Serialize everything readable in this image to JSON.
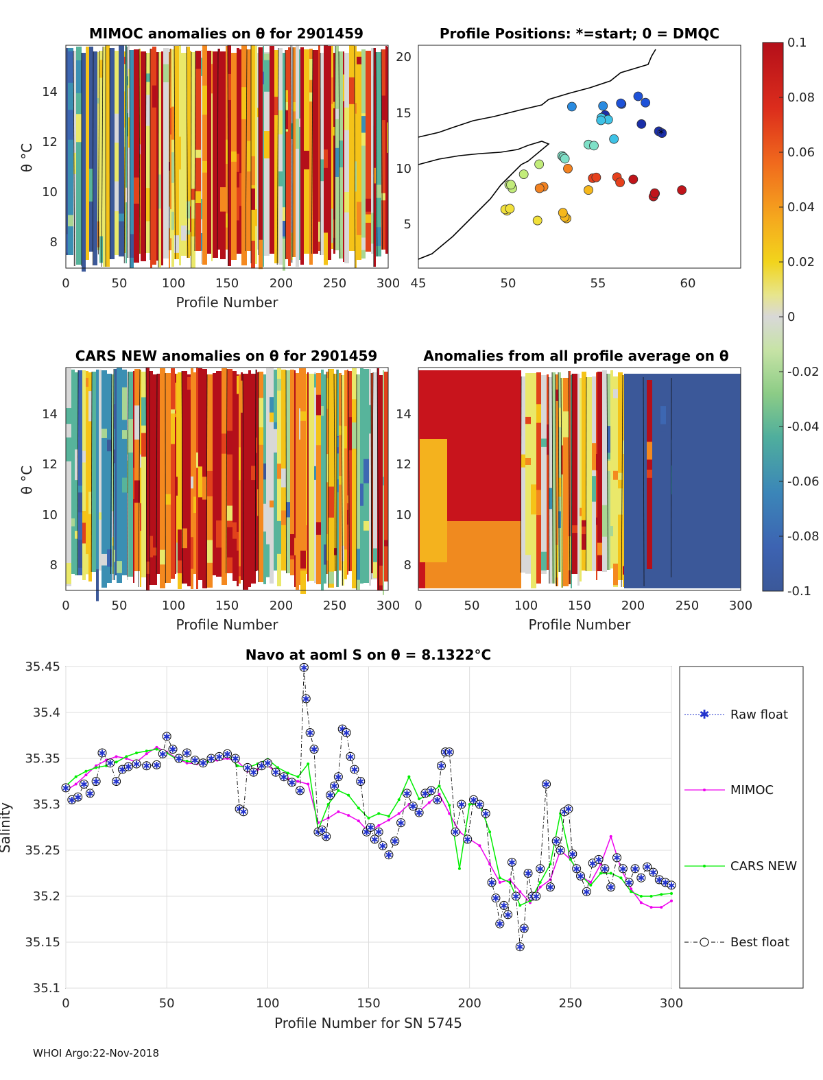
{
  "panels": {
    "mimoc": {
      "title": "MIMOC anomalies on θ  for 2901459",
      "ylabel": "θ °C",
      "xlabel": "Profile Number",
      "xticks": [
        "0",
        "50",
        "100",
        "150",
        "200",
        "250",
        "300"
      ],
      "yticks": [
        "8",
        "10",
        "12",
        "14"
      ]
    },
    "positions": {
      "title": "Profile Positions: *=start; 0 = DMQC",
      "xticks": [
        "45",
        "50",
        "55",
        "60"
      ],
      "yticks": [
        "5",
        "10",
        "15",
        "20"
      ]
    },
    "cars": {
      "title": "CARS NEW anomalies on θ for 2901459",
      "ylabel": "θ °C",
      "xlabel": "Profile Number",
      "xticks": [
        "0",
        "50",
        "100",
        "150",
        "200",
        "250",
        "300"
      ],
      "yticks": [
        "8",
        "10",
        "12",
        "14"
      ]
    },
    "allavg": {
      "title": "Anomalies from all profile average on θ",
      "xlabel": "Profile Number",
      "xticks": [
        "0",
        "50",
        "100",
        "150",
        "200",
        "250",
        "300"
      ],
      "yticks": [
        "8",
        "10",
        "12",
        "14"
      ]
    }
  },
  "colorbar": {
    "ticks": [
      "0.1",
      "0.08",
      "0.06",
      "0.04",
      "0.02",
      "0",
      "-0.02",
      "-0.04",
      "-0.06",
      "-0.08",
      "-0.1"
    ],
    "colors": [
      "#b40f1a",
      "#e1421b",
      "#f4891f",
      "#f5c318",
      "#eae86a",
      "#d8d8d8",
      "#a9d693",
      "#57b49b",
      "#3b8fb3",
      "#3d67b2",
      "#3b5899"
    ]
  },
  "chart_data": [
    {
      "type": "line",
      "title": "Navo at aoml S on θ = 8.1322°C",
      "xlabel": "Profile Number for SN 5745",
      "ylabel": "Salinity",
      "xlim": [
        0,
        300
      ],
      "ylim": [
        35.1,
        35.45
      ],
      "xticks": [
        "0",
        "50",
        "100",
        "150",
        "200",
        "250",
        "300"
      ],
      "yticks": [
        "35.1",
        "35.15",
        "35.2",
        "35.25",
        "35.3",
        "35.35",
        "35.4",
        "35.45"
      ],
      "legend_position": "right",
      "series": [
        {
          "name": "Raw float",
          "color": "#2233cc",
          "x": [],
          "y": []
        },
        {
          "name": "MIMOC",
          "color": "#ee00ee",
          "x": [
            0,
            5,
            10,
            15,
            20,
            25,
            30,
            35,
            40,
            45,
            50,
            55,
            60,
            65,
            70,
            75,
            80,
            85,
            90,
            95,
            100,
            105,
            110,
            115,
            120,
            125,
            130,
            135,
            140,
            145,
            150,
            155,
            160,
            165,
            170,
            175,
            180,
            185,
            190,
            195,
            200,
            205,
            210,
            215,
            220,
            225,
            230,
            235,
            240,
            245,
            250,
            255,
            260,
            265,
            270,
            275,
            280,
            285,
            290,
            295,
            300
          ],
          "y": [
            35.315,
            35.322,
            35.332,
            35.342,
            35.348,
            35.352,
            35.35,
            35.346,
            35.355,
            35.362,
            35.357,
            35.35,
            35.345,
            35.344,
            35.346,
            35.348,
            35.35,
            35.347,
            35.336,
            35.338,
            35.342,
            35.334,
            35.328,
            35.325,
            35.322,
            35.28,
            35.285,
            35.292,
            35.288,
            35.282,
            35.27,
            35.277,
            35.283,
            35.29,
            35.3,
            35.292,
            35.302,
            35.311,
            35.29,
            35.27,
            35.262,
            35.255,
            35.235,
            35.215,
            35.218,
            35.205,
            35.193,
            35.21,
            35.218,
            35.25,
            35.24,
            35.222,
            35.215,
            35.235,
            35.265,
            35.23,
            35.208,
            35.193,
            35.188,
            35.188,
            35.195
          ]
        },
        {
          "name": "CARS NEW",
          "color": "#00ee00",
          "x": [
            0,
            5,
            10,
            15,
            20,
            25,
            30,
            35,
            40,
            45,
            50,
            55,
            60,
            65,
            70,
            75,
            80,
            85,
            90,
            95,
            100,
            105,
            110,
            115,
            120,
            125,
            130,
            135,
            140,
            145,
            150,
            155,
            160,
            165,
            170,
            175,
            180,
            185,
            190,
            195,
            200,
            205,
            210,
            215,
            220,
            225,
            230,
            235,
            240,
            245,
            250,
            255,
            260,
            265,
            270,
            275,
            280,
            285,
            290,
            295,
            300
          ],
          "y": [
            35.32,
            35.33,
            35.336,
            35.34,
            35.342,
            35.346,
            35.352,
            35.356,
            35.358,
            35.36,
            35.356,
            35.349,
            35.347,
            35.345,
            35.346,
            35.35,
            35.354,
            35.342,
            35.34,
            35.344,
            35.349,
            35.34,
            35.334,
            35.33,
            35.344,
            35.272,
            35.3,
            35.315,
            35.31,
            35.296,
            35.285,
            35.29,
            35.287,
            35.305,
            35.33,
            35.306,
            35.31,
            35.32,
            35.299,
            35.23,
            35.3,
            35.3,
            35.27,
            35.22,
            35.215,
            35.19,
            35.195,
            35.215,
            35.235,
            35.29,
            35.24,
            35.223,
            35.212,
            35.225,
            35.225,
            35.22,
            35.205,
            35.2,
            35.2,
            35.202,
            35.203
          ]
        },
        {
          "name": "Best float",
          "color": "#000000",
          "x": [
            0,
            3,
            6,
            9,
            12,
            15,
            18,
            22,
            25,
            28,
            31,
            35,
            40,
            45,
            48,
            50,
            53,
            56,
            60,
            64,
            68,
            72,
            76,
            80,
            84,
            86,
            88,
            90,
            93,
            97,
            100,
            104,
            108,
            112,
            116,
            118,
            119,
            121,
            123,
            125,
            127,
            129,
            131,
            133,
            135,
            137,
            139,
            141,
            143,
            146,
            149,
            151,
            153,
            155,
            157,
            160,
            163,
            166,
            169,
            172,
            175,
            178,
            181,
            184,
            186,
            188,
            190,
            193,
            196,
            199,
            202,
            205,
            208,
            211,
            213,
            215,
            217,
            219,
            221,
            223,
            225,
            227,
            229,
            231,
            233,
            235,
            238,
            240,
            243,
            245,
            247,
            249,
            251,
            253,
            255,
            258,
            261,
            264,
            267,
            270,
            273,
            276,
            279,
            282,
            285,
            288,
            291,
            294,
            297,
            300
          ],
          "y": [
            35.318,
            35.305,
            35.308,
            35.322,
            35.312,
            35.325,
            35.356,
            35.345,
            35.325,
            35.338,
            35.341,
            35.344,
            35.342,
            35.343,
            35.355,
            35.374,
            35.36,
            35.35,
            35.356,
            35.348,
            35.345,
            35.35,
            35.352,
            35.355,
            35.35,
            35.295,
            35.292,
            35.34,
            35.335,
            35.342,
            35.345,
            35.335,
            35.33,
            35.324,
            35.315,
            35.449,
            35.415,
            35.378,
            35.36,
            35.27,
            35.272,
            35.265,
            35.31,
            35.32,
            35.33,
            35.382,
            35.378,
            35.352,
            35.338,
            35.325,
            35.27,
            35.275,
            35.262,
            35.27,
            35.255,
            35.245,
            35.26,
            35.28,
            35.312,
            35.298,
            35.291,
            35.312,
            35.315,
            35.305,
            35.342,
            35.357,
            35.357,
            35.27,
            35.3,
            35.262,
            35.305,
            35.3,
            35.29,
            35.215,
            35.198,
            35.17,
            35.19,
            35.18,
            35.237,
            35.2,
            35.145,
            35.165,
            35.225,
            35.2,
            35.2,
            35.23,
            35.322,
            35.21,
            35.26,
            35.25,
            35.292,
            35.295,
            35.246,
            35.23,
            35.222,
            35.205,
            35.236,
            35.24,
            35.23,
            35.21,
            35.242,
            35.23,
            35.215,
            35.23,
            35.22,
            35.232,
            35.226,
            35.218,
            35.215,
            35.212
          ]
        }
      ]
    }
  ],
  "footer": "WHOI Argo:22-Nov-2018"
}
